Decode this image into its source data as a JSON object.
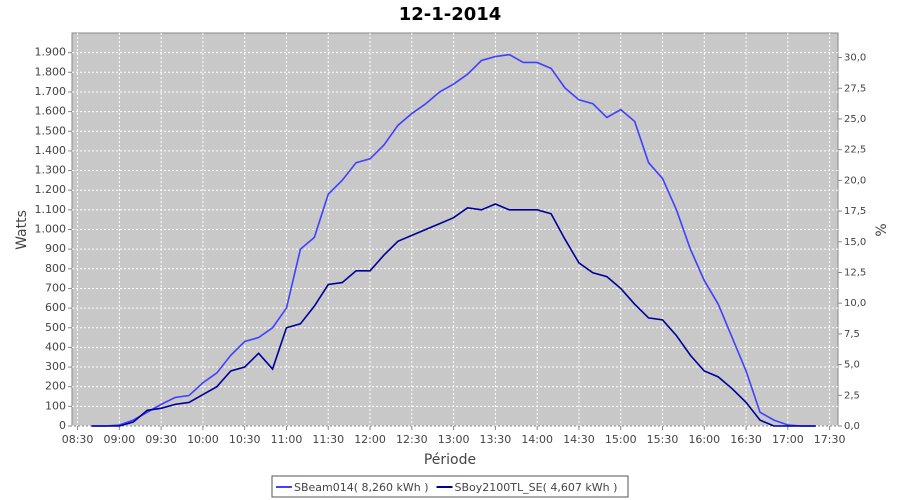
{
  "chart_data": {
    "type": "line",
    "title": "12-1-2014",
    "x_label": "Période",
    "y_label": "Watts",
    "y2_label": "%",
    "x": [
      520,
      530,
      540,
      550,
      560,
      570,
      580,
      590,
      600,
      610,
      620,
      630,
      640,
      650,
      660,
      670,
      680,
      690,
      700,
      710,
      720,
      730,
      740,
      750,
      760,
      770,
      780,
      790,
      800,
      810,
      820,
      830,
      840,
      850,
      860,
      870,
      880,
      890,
      900,
      910,
      920,
      930,
      940,
      950,
      960,
      970,
      980,
      990,
      1000,
      1010,
      1020,
      1030,
      1040
    ],
    "xlim": [
      506,
      1056
    ],
    "xticks": [
      {
        "value": 510,
        "label": "08:30"
      },
      {
        "value": 540,
        "label": "09:00"
      },
      {
        "value": 570,
        "label": "09:30"
      },
      {
        "value": 600,
        "label": "10:00"
      },
      {
        "value": 630,
        "label": "10:30"
      },
      {
        "value": 660,
        "label": "11:00"
      },
      {
        "value": 690,
        "label": "11:30"
      },
      {
        "value": 720,
        "label": "12:00"
      },
      {
        "value": 750,
        "label": "12:30"
      },
      {
        "value": 780,
        "label": "13:00"
      },
      {
        "value": 810,
        "label": "13:30"
      },
      {
        "value": 840,
        "label": "14:00"
      },
      {
        "value": 870,
        "label": "14:30"
      },
      {
        "value": 900,
        "label": "15:00"
      },
      {
        "value": 930,
        "label": "15:30"
      },
      {
        "value": 960,
        "label": "16:00"
      },
      {
        "value": 990,
        "label": "16:30"
      },
      {
        "value": 1020,
        "label": "17:00"
      },
      {
        "value": 1050,
        "label": "17:30"
      }
    ],
    "ylim": [
      0,
      2000
    ],
    "yticks": [
      0,
      100,
      200,
      300,
      400,
      500,
      600,
      700,
      800,
      900,
      {
        "value": 1000,
        "label": "1.000"
      },
      {
        "value": 1100,
        "label": "1.100"
      },
      {
        "value": 1200,
        "label": "1.200"
      },
      {
        "value": 1300,
        "label": "1.300"
      },
      {
        "value": 1400,
        "label": "1.400"
      },
      {
        "value": 1500,
        "label": "1.500"
      },
      {
        "value": 1600,
        "label": "1.600"
      },
      {
        "value": 1700,
        "label": "1.700"
      },
      {
        "value": 1800,
        "label": "1.800"
      },
      {
        "value": 1900,
        "label": "1.900"
      }
    ],
    "y2lim": [
      0,
      32
    ],
    "y2ticks": [
      {
        "value": 0,
        "label": "0,0"
      },
      {
        "value": 2.5,
        "label": "2,5"
      },
      {
        "value": 5,
        "label": "5,0"
      },
      {
        "value": 7.5,
        "label": "7,5"
      },
      {
        "value": 10,
        "label": "10,0"
      },
      {
        "value": 12.5,
        "label": "12,5"
      },
      {
        "value": 15,
        "label": "15,0"
      },
      {
        "value": 17.5,
        "label": "17,5"
      },
      {
        "value": 20,
        "label": "20,0"
      },
      {
        "value": 22.5,
        "label": "22,5"
      },
      {
        "value": 25,
        "label": "25,0"
      },
      {
        "value": 27.5,
        "label": "27,5"
      },
      {
        "value": 30,
        "label": "30,0"
      }
    ],
    "grid": true,
    "legend": "bottom",
    "series": [
      {
        "name": "SBeam014( 8,260 kWh )",
        "color": "#4040ff",
        "values": [
          0,
          0,
          5,
          30,
          70,
          110,
          145,
          155,
          220,
          270,
          360,
          430,
          450,
          500,
          600,
          900,
          960,
          1180,
          1250,
          1340,
          1360,
          1430,
          1530,
          1590,
          1640,
          1700,
          1740,
          1790,
          1860,
          1880,
          1890,
          1850,
          1850,
          1820,
          1720,
          1660,
          1640,
          1570,
          1610,
          1550,
          1340,
          1260,
          1100,
          900,
          740,
          620,
          450,
          280,
          70,
          30,
          5,
          0,
          0
        ]
      },
      {
        "name": "SBoy2100TL_SE( 4,607 kWh )",
        "color": "#000099",
        "values": [
          0,
          0,
          0,
          20,
          80,
          90,
          110,
          120,
          160,
          200,
          280,
          300,
          370,
          290,
          500,
          520,
          610,
          720,
          730,
          790,
          790,
          870,
          940,
          970,
          1000,
          1030,
          1060,
          1110,
          1100,
          1130,
          1100,
          1100,
          1100,
          1080,
          950,
          830,
          780,
          760,
          700,
          620,
          550,
          540,
          460,
          360,
          280,
          250,
          190,
          120,
          30,
          0,
          0,
          0,
          0
        ]
      }
    ]
  }
}
